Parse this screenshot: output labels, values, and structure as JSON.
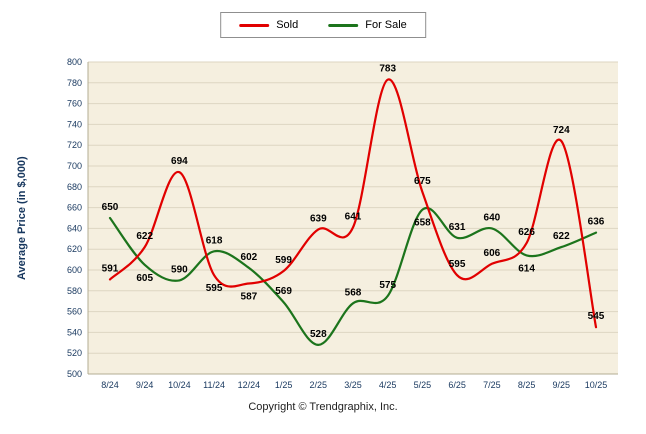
{
  "chart_data": {
    "type": "line",
    "title": "",
    "categories": [
      "8/24",
      "9/24",
      "10/24",
      "11/24",
      "12/24",
      "1/25",
      "2/25",
      "3/25",
      "4/25",
      "5/25",
      "6/25",
      "7/25",
      "8/25",
      "9/25",
      "10/25"
    ],
    "series": [
      {
        "name": "Sold",
        "color": "#e10000",
        "values": [
          591,
          622,
          694,
          595,
          587,
          599,
          639,
          641,
          783,
          675,
          595,
          606,
          626,
          724,
          545
        ]
      },
      {
        "name": "For Sale",
        "color": "#1c741c",
        "values": [
          650,
          605,
          590,
          618,
          602,
          569,
          528,
          568,
          575,
          658,
          631,
          640,
          614,
          622,
          636
        ]
      }
    ],
    "xlabel": "",
    "ylabel": "Average Price (in $,000)",
    "ylim": [
      500,
      800
    ],
    "ytick_step": 20,
    "grid": true,
    "legend_position": "top-center"
  },
  "legend": {
    "items": [
      {
        "label": "Sold",
        "color": "#e10000"
      },
      {
        "label": "For Sale",
        "color": "#1c741c"
      }
    ]
  },
  "footer": {
    "copyright": "Copyright © Trendgraphix, Inc."
  },
  "colors": {
    "plot_background": "#f5efdf",
    "grid_line": "#ddd6c2",
    "axis_line": "#b3ac93",
    "axis_text": "#17375e",
    "data_label": "#000000"
  }
}
